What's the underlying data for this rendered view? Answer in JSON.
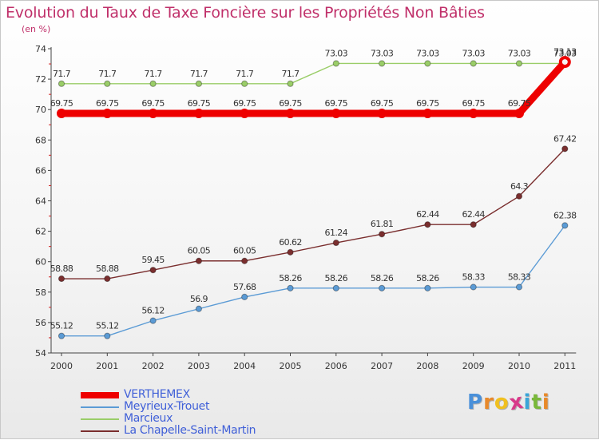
{
  "header": {
    "title": "Evolution du Taux de Taxe Foncière sur les Propriétés Non Bâties",
    "subtitle": "(en %)"
  },
  "chart_data": {
    "type": "line",
    "title": "Evolution du Taux de Taxe Foncière sur les Propriétés Non Bâties",
    "ylabel": "(en %)",
    "xlabel": "",
    "categories": [
      "2000",
      "2001",
      "2002",
      "2003",
      "2004",
      "2005",
      "2006",
      "2007",
      "2008",
      "2009",
      "2010",
      "2011"
    ],
    "ylim": [
      54,
      74
    ],
    "yticks": [
      54,
      56,
      58,
      60,
      62,
      64,
      66,
      68,
      70,
      72,
      74
    ],
    "grid": false,
    "legend_position": "bottom-left",
    "series": [
      {
        "name": "VERTHEMEX",
        "color": "#ee0000",
        "emphasis": true,
        "values": [
          69.75,
          69.75,
          69.75,
          69.75,
          69.75,
          69.75,
          69.75,
          69.75,
          69.75,
          69.75,
          69.75,
          73.13
        ],
        "labels": [
          "69.75",
          "69.75",
          "69.75",
          "69.75",
          "69.75",
          "69.75",
          "69.75",
          "69.75",
          "69.75",
          "69.75",
          "69.75",
          "73.13"
        ]
      },
      {
        "name": "Meyrieux-Trouet",
        "color": "#5b9bd5",
        "values": [
          55.12,
          55.12,
          56.12,
          56.9,
          57.68,
          58.26,
          58.26,
          58.26,
          58.26,
          58.33,
          58.33,
          62.38
        ],
        "labels": [
          "55.12",
          "55.12",
          "56.12",
          "56.9",
          "57.68",
          "58.26",
          "58.26",
          "58.26",
          "58.26",
          "58.33",
          "58.33",
          "62.38"
        ]
      },
      {
        "name": "Marcieux",
        "color": "#9acd68",
        "values": [
          71.7,
          71.7,
          71.7,
          71.7,
          71.7,
          71.7,
          73.03,
          73.03,
          73.03,
          73.03,
          73.03,
          73.03
        ],
        "labels": [
          "71.7",
          "71.7",
          "71.7",
          "71.7",
          "71.7",
          "71.7",
          "73.03",
          "73.03",
          "73.03",
          "73.03",
          "73.03",
          "73.03"
        ]
      },
      {
        "name": "La Chapelle-Saint-Martin",
        "color": "#7a2e2e",
        "values": [
          58.88,
          58.88,
          59.45,
          60.05,
          60.05,
          60.62,
          61.24,
          61.81,
          62.44,
          62.44,
          64.3,
          67.42
        ],
        "labels": [
          "58.88",
          "58.88",
          "59.45",
          "60.05",
          "60.05",
          "60.62",
          "61.24",
          "61.81",
          "62.44",
          "62.44",
          "64.3",
          "67.42"
        ]
      }
    ]
  },
  "legend": {
    "items": [
      {
        "label": "VERTHEMEX",
        "color": "#ee0000"
      },
      {
        "label": "Meyrieux-Trouet",
        "color": "#5b9bd5"
      },
      {
        "label": "Marcieux",
        "color": "#9acd68"
      },
      {
        "label": "La Chapelle-Saint-Martin",
        "color": "#7a2e2e"
      }
    ]
  },
  "logo": {
    "text": "Proxiti",
    "letters": [
      "P",
      "r",
      "o",
      "x",
      "i",
      "t",
      "i"
    ],
    "letter_colors": [
      "#4a90d9",
      "#e8892a",
      "#f0c020",
      "#d83a8a",
      "#3aa5d8",
      "#79b83a",
      "#e8892a"
    ]
  }
}
